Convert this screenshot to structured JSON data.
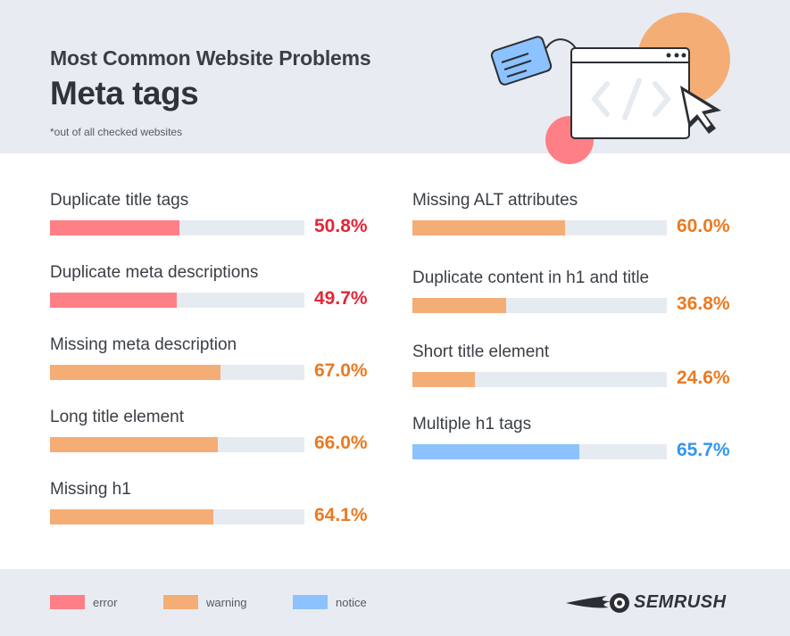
{
  "header": {
    "supertitle": "Most Common Website Problems",
    "title": "Meta tags",
    "footnote": "*out of all checked websites"
  },
  "colors": {
    "error": "#ff7f86",
    "warning": "#f5ad76",
    "notice": "#8cc2ff",
    "error_text": "#e0283a",
    "warning_text": "#ea7a22",
    "notice_text": "#3597ee",
    "track": "#e6ebf1"
  },
  "chart_data": {
    "type": "bar",
    "orientation": "horizontal",
    "unit": "%",
    "xlim": [
      0,
      100
    ],
    "categories": [
      "Duplicate title tags",
      "Duplicate meta descriptions",
      "Missing meta description",
      "Long title element",
      "Missing h1",
      "Missing ALT attributes",
      "Duplicate content in h1 and title",
      "Short title element",
      "Multiple h1 tags"
    ],
    "values": [
      50.8,
      49.7,
      67.0,
      66.0,
      64.1,
      60.0,
      36.8,
      24.6,
      65.7
    ],
    "labels": [
      "50.8%",
      "49.7%",
      "67.0%",
      "66.0%",
      "64.1%",
      "60.0%",
      "36.8%",
      "24.6%",
      "65.7%"
    ],
    "severity": [
      "error",
      "error",
      "warning",
      "warning",
      "warning",
      "warning",
      "warning",
      "warning",
      "notice"
    ],
    "legend": [
      {
        "key": "error",
        "label": "error"
      },
      {
        "key": "warning",
        "label": "warning"
      },
      {
        "key": "notice",
        "label": "notice"
      }
    ],
    "legend_placement": "bottom-left",
    "grid": false
  },
  "brand": {
    "name": "SEMRUSH",
    "icon": "semrush-fireball-icon"
  },
  "illustration": {
    "icons": [
      "price-tag-icon",
      "browser-window-icon",
      "code-brackets-icon",
      "mouse-cursor-icon"
    ]
  }
}
